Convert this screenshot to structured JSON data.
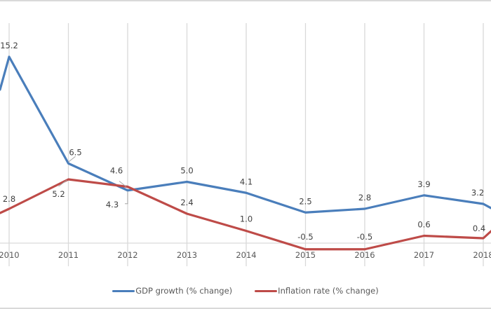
{
  "chart_data": {
    "type": "line",
    "title": "",
    "xlabel": "",
    "ylabel": "",
    "categories": [
      "2010",
      "2011",
      "2012",
      "2013",
      "2014",
      "2015",
      "2016",
      "2017",
      "2018"
    ],
    "ylim": [
      -1,
      16
    ],
    "grid": "vertical",
    "legend_position": "bottom",
    "series": [
      {
        "name": "GDP growth (% change)",
        "color": "#4a7ebb",
        "values": [
          15.2,
          6.5,
          4.3,
          5.0,
          4.1,
          2.5,
          2.8,
          3.9,
          3.2
        ],
        "labels": [
          "15.2",
          "6.5",
          "4.3",
          "5.0",
          "4.1",
          "2.5",
          "2.8",
          "3.9",
          "3.2"
        ]
      },
      {
        "name": "Inflation rate (% change)",
        "color": "#be4b48",
        "values": [
          2.8,
          5.2,
          4.6,
          2.4,
          1.0,
          -0.5,
          -0.5,
          0.6,
          0.4
        ],
        "labels": [
          "2.8",
          "5.2",
          "4.6",
          "2.4",
          "1.0",
          "-0.5",
          "-0.5",
          "0.6",
          "0.4"
        ]
      }
    ]
  },
  "legend": {
    "items": [
      {
        "label": "GDP growth (% change)",
        "color": "#4a7ebb"
      },
      {
        "label": "Inflation rate (% change)",
        "color": "#be4b48"
      }
    ]
  }
}
